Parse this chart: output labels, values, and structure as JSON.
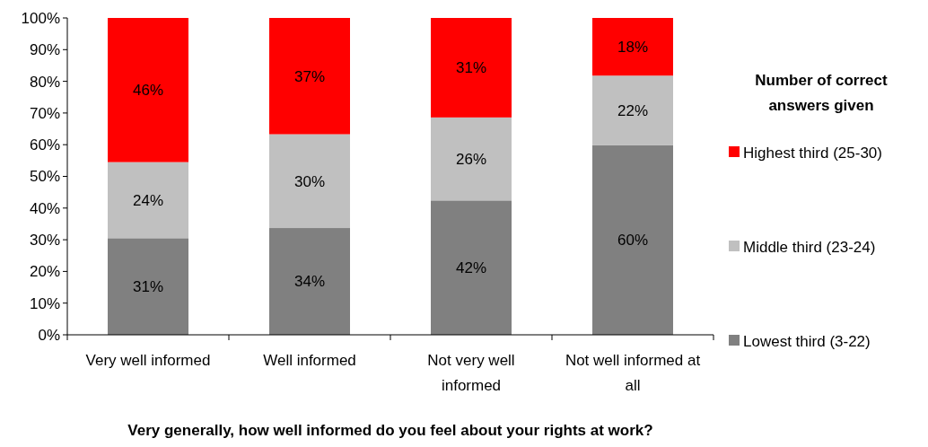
{
  "chart_data": {
    "type": "bar",
    "stacked": true,
    "categories": [
      "Very well informed",
      "Well informed",
      "Not very well informed",
      "Not well informed at all"
    ],
    "series": [
      {
        "name": "Lowest third (3-22)",
        "color": "#808080",
        "values": [
          30.5,
          33.7,
          42.4,
          59.8
        ],
        "value_labels": [
          "31%",
          "34%",
          "42%",
          "60%"
        ]
      },
      {
        "name": "Middle third (23-24)",
        "color": "#c0c0c0",
        "values": [
          24,
          29.6,
          26.2,
          22
        ],
        "value_labels": [
          "24%",
          "30%",
          "26%",
          "22%"
        ]
      },
      {
        "name": "Highest third (25-30)",
        "color": "#ff0000",
        "values": [
          45.5,
          36.7,
          31.4,
          18.2
        ],
        "value_labels": [
          "46%",
          "37%",
          "31%",
          "18%"
        ]
      }
    ],
    "ylim": [
      0,
      100
    ],
    "yticks": [
      {
        "value": 0,
        "label": "0%"
      },
      {
        "value": 10,
        "label": "10%"
      },
      {
        "value": 20,
        "label": "20%"
      },
      {
        "value": 30,
        "label": "30%"
      },
      {
        "value": 40,
        "label": "40%"
      },
      {
        "value": 50,
        "label": "50%"
      },
      {
        "value": 60,
        "label": "60%"
      },
      {
        "value": 70,
        "label": "70%"
      },
      {
        "value": 80,
        "label": "80%"
      },
      {
        "value": 90,
        "label": "90%"
      },
      {
        "value": 100,
        "label": "100%"
      }
    ],
    "xlabel": "Very generally, how well informed do you feel about your rights at work?",
    "legend_title": "Number of correct answers given",
    "legend": "right",
    "grid": false
  }
}
